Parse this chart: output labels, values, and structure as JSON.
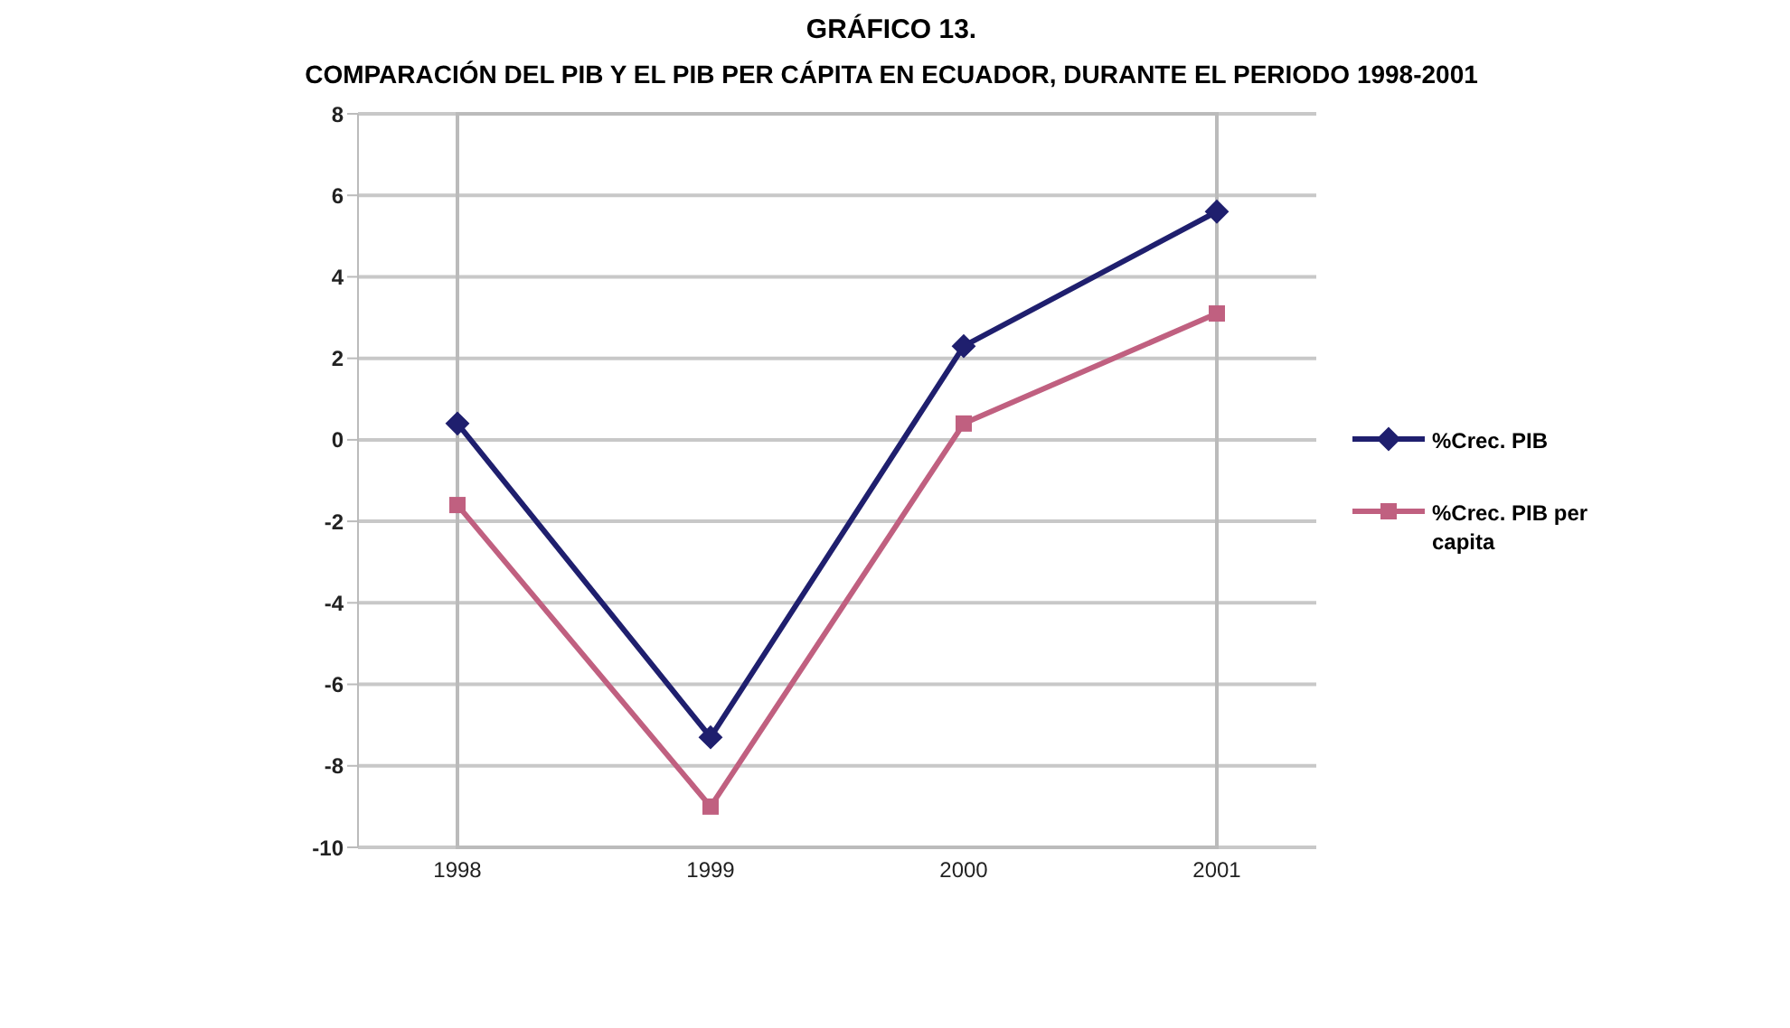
{
  "chart_data": {
    "type": "line",
    "title": "GRÁFICO 13.",
    "subtitle": "COMPARACIÓN DEL PIB Y EL PIB PER CÁPITA EN ECUADOR, DURANTE EL PERIODO 1998-2001",
    "categories": [
      "1998",
      "1999",
      "2000",
      "2001"
    ],
    "series": [
      {
        "name": "%Crec. PIB",
        "color": "#1f1f6e",
        "marker": "diamond",
        "values": [
          0.4,
          -7.3,
          2.3,
          5.6
        ]
      },
      {
        "name": "%Crec. PIB per capita",
        "color": "#c06080",
        "marker": "square",
        "values": [
          -1.6,
          -9.0,
          0.4,
          3.1
        ]
      }
    ],
    "ylim": [
      -10,
      8
    ],
    "yticks": [
      -10,
      -8,
      -6,
      -4,
      -2,
      0,
      2,
      4,
      6,
      8
    ],
    "grid": "y",
    "legend": "right"
  }
}
